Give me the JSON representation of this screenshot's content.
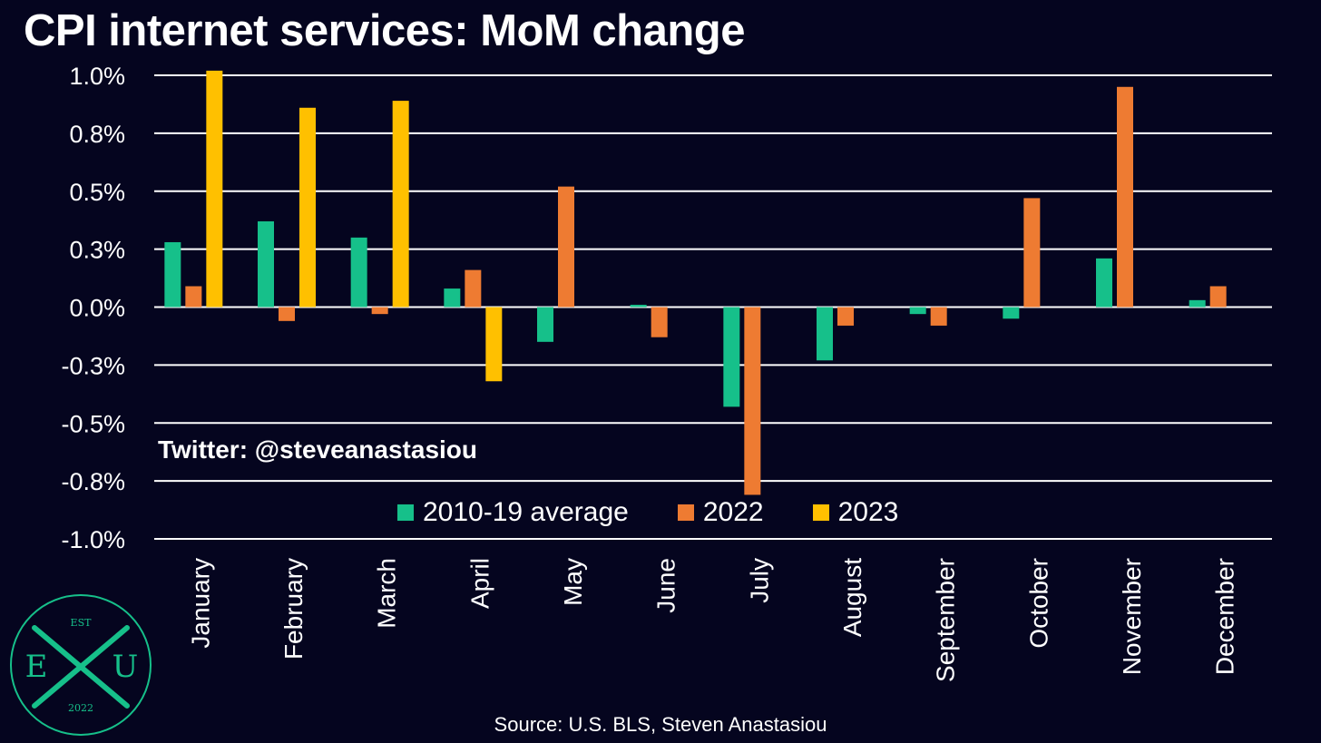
{
  "title": "CPI internet services: MoM change",
  "watermark": "Twitter: @steveanastasiou",
  "source": "Source: U.S. BLS, Steven Anastasiou",
  "logo": {
    "top": "EST",
    "left": "E",
    "right": "U",
    "bottom": "2022"
  },
  "colors": {
    "background": "#05051f",
    "grid": "#ffffff",
    "text": "#ffffff"
  },
  "chart_data": {
    "type": "bar",
    "title": "CPI internet services: MoM change",
    "xlabel": "",
    "ylabel": "",
    "ylim": [
      -1.0,
      1.0
    ],
    "yticks": [
      1.0,
      0.75,
      0.5,
      0.25,
      0.0,
      -0.25,
      -0.5,
      -0.75,
      -1.0
    ],
    "ytick_labels": [
      "1.0%",
      "0.8%",
      "0.5%",
      "0.3%",
      "0.0%",
      "-0.3%",
      "-0.5%",
      "-0.8%",
      "-1.0%"
    ],
    "grid": true,
    "legend_position": "bottom-center",
    "categories": [
      "January",
      "February",
      "March",
      "April",
      "May",
      "June",
      "July",
      "August",
      "September",
      "October",
      "November",
      "December"
    ],
    "series": [
      {
        "name": "2010-19 average",
        "color": "#16c08a",
        "values": [
          0.28,
          0.37,
          0.3,
          0.08,
          -0.15,
          0.01,
          -0.43,
          -0.23,
          -0.03,
          -0.05,
          0.21,
          0.03
        ]
      },
      {
        "name": "2022",
        "color": "#ee7b32",
        "values": [
          0.09,
          -0.06,
          -0.03,
          0.16,
          0.52,
          -0.13,
          -0.81,
          -0.08,
          -0.08,
          0.47,
          0.95,
          0.09
        ]
      },
      {
        "name": "2023",
        "color": "#ffc000",
        "values": [
          1.02,
          0.86,
          0.89,
          -0.32,
          null,
          null,
          null,
          null,
          null,
          null,
          null,
          null
        ]
      }
    ]
  }
}
